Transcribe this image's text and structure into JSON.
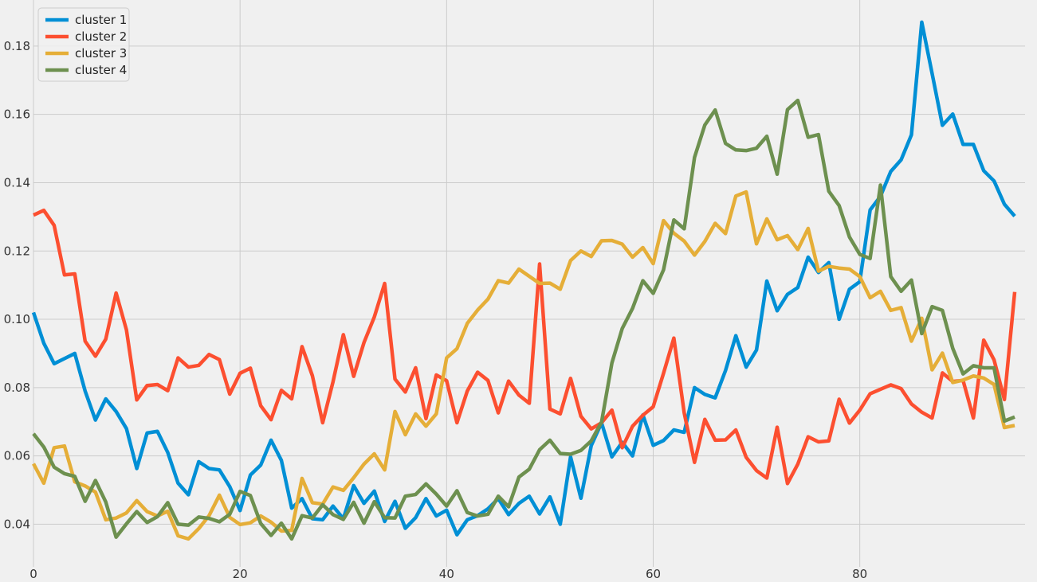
{
  "chart_data": {
    "type": "line",
    "title": "",
    "xlabel": "",
    "ylabel": "",
    "xlim": [
      0,
      96
    ],
    "ylim": [
      0.0275,
      0.1935
    ],
    "x_ticks": [
      0,
      20,
      40,
      60,
      80
    ],
    "x_tick_labels": [
      "0",
      "20",
      "40",
      "60",
      "80"
    ],
    "y_ticks": [
      0.04,
      0.06,
      0.08,
      0.1,
      0.12,
      0.14,
      0.16,
      0.18
    ],
    "y_tick_labels": [
      "0.04",
      "0.06",
      "0.08",
      "0.10",
      "0.12",
      "0.14",
      "0.16",
      "0.18"
    ],
    "grid": true,
    "legend_position": "top-left",
    "series": [
      {
        "name": "cluster 1",
        "color": "#008fd5",
        "values": [
          0.102,
          0.093,
          0.087,
          0.0885,
          0.09,
          0.079,
          0.0705,
          0.0767,
          0.073,
          0.068,
          0.0563,
          0.0667,
          0.0672,
          0.061,
          0.052,
          0.0486,
          0.0583,
          0.0563,
          0.0559,
          0.051,
          0.044,
          0.0544,
          0.0573,
          0.0646,
          0.0587,
          0.0447,
          0.0475,
          0.0416,
          0.0413,
          0.0453,
          0.0416,
          0.0513,
          0.0461,
          0.0497,
          0.0408,
          0.0467,
          0.0388,
          0.0419,
          0.0475,
          0.0424,
          0.0441,
          0.0369,
          0.0413,
          0.0425,
          0.0445,
          0.0475,
          0.0428,
          0.0461,
          0.0482,
          0.043,
          0.048,
          0.04,
          0.0597,
          0.0476,
          0.063,
          0.0697,
          0.0597,
          0.064,
          0.06,
          0.072,
          0.0631,
          0.0645,
          0.0676,
          0.0669,
          0.08,
          0.078,
          0.077,
          0.085,
          0.0952,
          0.086,
          0.091,
          0.1112,
          0.1025,
          0.1073,
          0.1093,
          0.1182,
          0.1137,
          0.1166,
          0.1,
          0.1088,
          0.111,
          0.132,
          0.136,
          0.1433,
          0.1467,
          0.154,
          0.187,
          0.172,
          0.1568,
          0.1601,
          0.1512,
          0.1512,
          0.1435,
          0.1405,
          0.1337,
          0.1302
        ]
      },
      {
        "name": "cluster 2",
        "color": "#fc4f30",
        "values": [
          0.1305,
          0.1319,
          0.1275,
          0.113,
          0.1133,
          0.0936,
          0.0892,
          0.0942,
          0.1077,
          0.0969,
          0.0764,
          0.0806,
          0.0809,
          0.0791,
          0.0887,
          0.086,
          0.0865,
          0.0897,
          0.0882,
          0.0781,
          0.0842,
          0.0857,
          0.0747,
          0.0706,
          0.0792,
          0.0767,
          0.092,
          0.0835,
          0.0697,
          0.0817,
          0.0955,
          0.0833,
          0.0932,
          0.1007,
          0.1105,
          0.0825,
          0.0787,
          0.0858,
          0.0709,
          0.0837,
          0.082,
          0.0697,
          0.079,
          0.0845,
          0.0821,
          0.0726,
          0.0819,
          0.0778,
          0.0754,
          0.1162,
          0.0737,
          0.0723,
          0.0827,
          0.0716,
          0.0679,
          0.0697,
          0.0734,
          0.0624,
          0.0687,
          0.0719,
          0.0744,
          0.0842,
          0.0945,
          0.0726,
          0.0581,
          0.0707,
          0.0646,
          0.0647,
          0.0676,
          0.0596,
          0.0557,
          0.0535,
          0.0684,
          0.0519,
          0.0576,
          0.0656,
          0.0641,
          0.0644,
          0.0766,
          0.0696,
          0.0734,
          0.0782,
          0.0795,
          0.0808,
          0.0797,
          0.0752,
          0.0728,
          0.0711,
          0.0843,
          0.0818,
          0.0821,
          0.0711,
          0.0939,
          0.0881,
          0.0765,
          0.108
        ]
      },
      {
        "name": "cluster 3",
        "color": "#e5ae38",
        "values": [
          0.0577,
          0.052,
          0.0624,
          0.0629,
          0.0524,
          0.0512,
          0.0494,
          0.0413,
          0.0418,
          0.0433,
          0.0469,
          0.0437,
          0.0424,
          0.0438,
          0.0366,
          0.0357,
          0.0387,
          0.0425,
          0.0485,
          0.042,
          0.0399,
          0.0404,
          0.0424,
          0.0406,
          0.038,
          0.0382,
          0.0534,
          0.0463,
          0.0459,
          0.0509,
          0.0499,
          0.0536,
          0.0576,
          0.0606,
          0.0559,
          0.073,
          0.0662,
          0.0723,
          0.0687,
          0.0723,
          0.0887,
          0.0914,
          0.0988,
          0.1027,
          0.1059,
          0.1113,
          0.1106,
          0.1147,
          0.1126,
          0.1105,
          0.1106,
          0.1088,
          0.1172,
          0.12,
          0.1184,
          0.123,
          0.1231,
          0.122,
          0.1182,
          0.121,
          0.1163,
          0.1289,
          0.1252,
          0.1229,
          0.1188,
          0.1228,
          0.1281,
          0.1251,
          0.1361,
          0.1373,
          0.1221,
          0.1294,
          0.1233,
          0.1245,
          0.1204,
          0.1266,
          0.1141,
          0.1155,
          0.115,
          0.1147,
          0.1125,
          0.1063,
          0.1082,
          0.1026,
          0.1034,
          0.0936,
          0.1003,
          0.0852,
          0.0901,
          0.0815,
          0.0822,
          0.0834,
          0.0828,
          0.0809,
          0.0683,
          0.0689
        ]
      },
      {
        "name": "cluster 4",
        "color": "#6d904f",
        "values": [
          0.0665,
          0.0626,
          0.0567,
          0.0548,
          0.054,
          0.0467,
          0.0528,
          0.0465,
          0.0362,
          0.0401,
          0.0437,
          0.0405,
          0.0422,
          0.0463,
          0.04,
          0.0397,
          0.0421,
          0.0417,
          0.0407,
          0.0429,
          0.0496,
          0.0484,
          0.0402,
          0.0367,
          0.0403,
          0.0357,
          0.0425,
          0.0418,
          0.0457,
          0.0428,
          0.0414,
          0.0464,
          0.0403,
          0.0466,
          0.0419,
          0.0418,
          0.0482,
          0.0487,
          0.0518,
          0.0488,
          0.0453,
          0.0498,
          0.0434,
          0.0424,
          0.0429,
          0.0482,
          0.0451,
          0.0538,
          0.0561,
          0.0618,
          0.0646,
          0.0607,
          0.0605,
          0.0616,
          0.0644,
          0.0699,
          0.0872,
          0.0973,
          0.1032,
          0.1113,
          0.1076,
          0.1145,
          0.1291,
          0.1265,
          0.1474,
          0.1569,
          0.1613,
          0.1515,
          0.1496,
          0.1494,
          0.1501,
          0.1536,
          0.1425,
          0.1614,
          0.1641,
          0.1533,
          0.1541,
          0.1375,
          0.1333,
          0.1241,
          0.119,
          0.1178,
          0.1393,
          0.1125,
          0.1082,
          0.1115,
          0.0958,
          0.1037,
          0.1026,
          0.0915,
          0.084,
          0.0864,
          0.0858,
          0.0858,
          0.0702,
          0.0714
        ]
      }
    ]
  }
}
